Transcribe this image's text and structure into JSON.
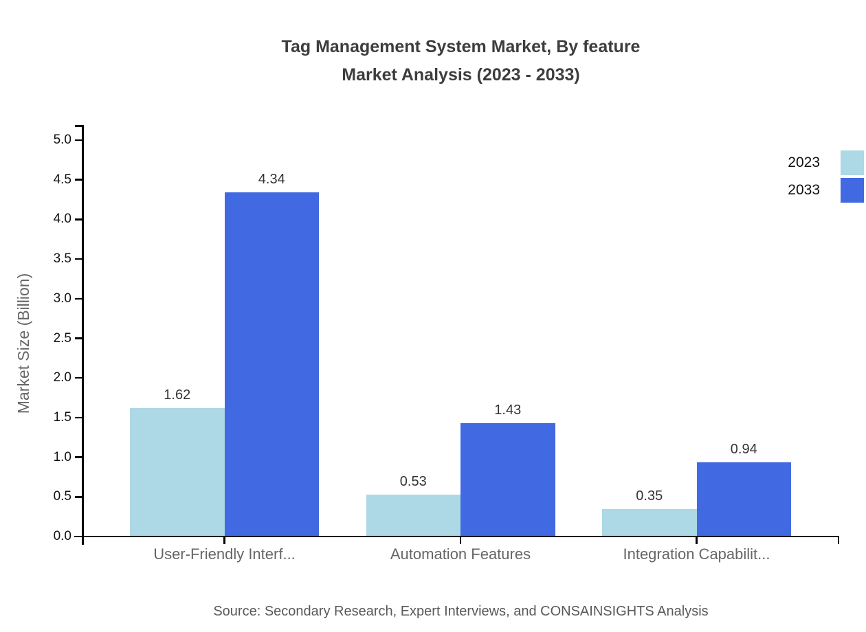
{
  "chart_data": {
    "type": "bar",
    "title_line1": "Tag Management System Market, By feature",
    "title_line2": "Market Analysis (2023 - 2033)",
    "ylabel": "Market Size (Billion)",
    "categories": [
      "User-Friendly Interf...",
      "Automation Features",
      "Integration Capabilit..."
    ],
    "series": [
      {
        "name": "2023",
        "color": "#ADD8E6",
        "values": [
          1.62,
          0.53,
          0.35
        ]
      },
      {
        "name": "2033",
        "color": "#4169E1",
        "values": [
          4.34,
          1.43,
          0.94
        ]
      }
    ],
    "ylim": [
      0,
      5
    ],
    "ytick_step": 0.5,
    "ytick_format_decimals": 1,
    "value_label_decimals": 2,
    "grid": false,
    "legend_position": "top-right",
    "axis_color": "#000000",
    "source": "Source: Secondary Research, Expert Interviews, and CONSAINSIGHTS Analysis"
  }
}
